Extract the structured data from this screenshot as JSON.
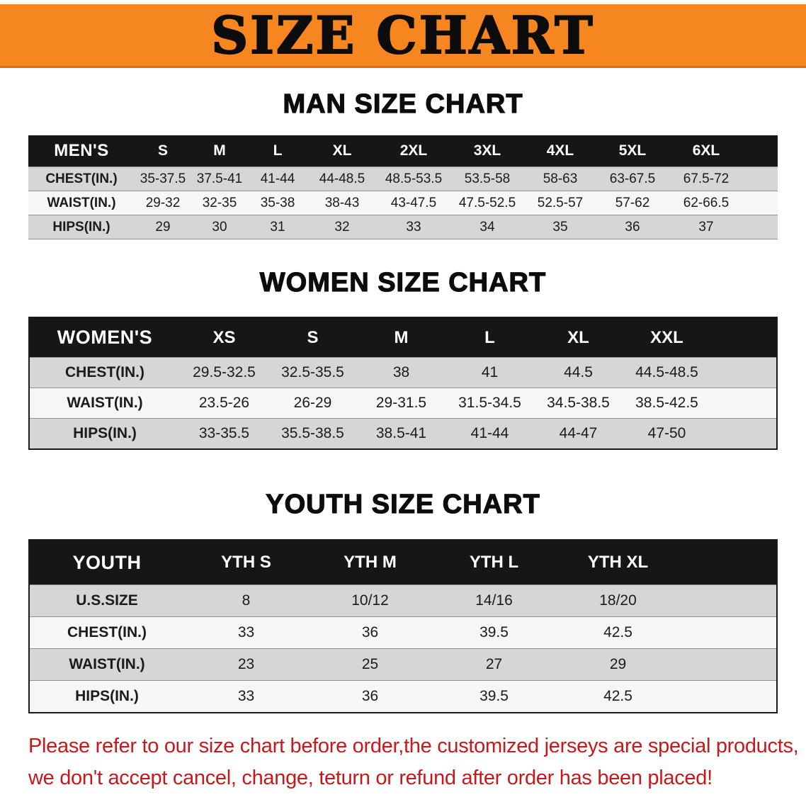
{
  "banner": {
    "title": "SIZE CHART"
  },
  "colors": {
    "banner_orange": "#f6861f",
    "table_header_black": "#181614",
    "row_gray": "#d6d6d6",
    "row_light": "#f6f6f6",
    "disclaimer_red": "#c9181b"
  },
  "men": {
    "heading": "MAN SIZE CHART",
    "header": [
      "MEN'S",
      "S",
      "M",
      "L",
      "XL",
      "2XL",
      "3XL",
      "4XL",
      "5XL",
      "6XL"
    ],
    "rows": [
      {
        "label": "CHEST(IN.)",
        "values": [
          "35-37.5",
          "37.5-41",
          "41-44",
          "44-48.5",
          "48.5-53.5",
          "53.5-58",
          "58-63",
          "63-67.5",
          "67.5-72"
        ]
      },
      {
        "label": "WAIST(IN.)",
        "values": [
          "29-32",
          "32-35",
          "35-38",
          "38-43",
          "43-47.5",
          "47.5-52.5",
          "52.5-57",
          "57-62",
          "62-66.5"
        ]
      },
      {
        "label": "HIPS(IN.)",
        "values": [
          "29",
          "30",
          "31",
          "32",
          "33",
          "34",
          "35",
          "36",
          "37"
        ]
      }
    ]
  },
  "women": {
    "heading": "WOMEN SIZE CHART",
    "header": [
      "WOMEN'S",
      "XS",
      "S",
      "M",
      "L",
      "XL",
      "XXL"
    ],
    "rows": [
      {
        "label": "CHEST(IN.)",
        "values": [
          "29.5-32.5",
          "32.5-35.5",
          "38",
          "41",
          "44.5",
          "44.5-48.5"
        ]
      },
      {
        "label": "WAIST(IN.)",
        "values": [
          "23.5-26",
          "26-29",
          "29-31.5",
          "31.5-34.5",
          "34.5-38.5",
          "38.5-42.5"
        ]
      },
      {
        "label": "HIPS(IN.)",
        "values": [
          "33-35.5",
          "35.5-38.5",
          "38.5-41",
          "41-44",
          "44-47",
          "47-50"
        ]
      }
    ]
  },
  "youth": {
    "heading": "YOUTH SIZE CHART",
    "header": [
      "YOUTH",
      "YTH S",
      "YTH M",
      "YTH L",
      "YTH XL"
    ],
    "rows": [
      {
        "label": "U.S.SIZE",
        "values": [
          "8",
          "10/12",
          "14/16",
          "18/20"
        ]
      },
      {
        "label": "CHEST(IN.)",
        "values": [
          "33",
          "36",
          "39.5",
          "42.5"
        ]
      },
      {
        "label": "WAIST(IN.)",
        "values": [
          "23",
          "25",
          "27",
          "29"
        ]
      },
      {
        "label": "HIPS(IN.)",
        "values": [
          "33",
          "36",
          "39.5",
          "42.5"
        ]
      }
    ]
  },
  "disclaimer": {
    "line1": "Please refer to our size chart before order,the customized jerseys are special products,",
    "line2": "we don't accept cancel, change, teturn or refund after order has been placed!"
  }
}
